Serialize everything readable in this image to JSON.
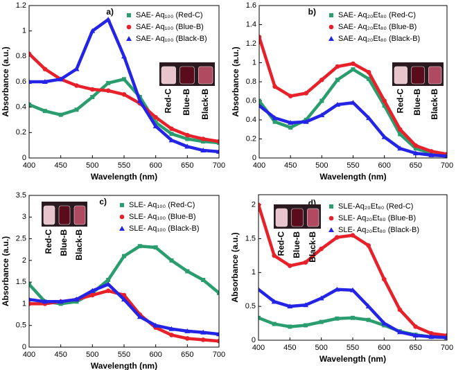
{
  "chart_data": [
    {
      "type": "line",
      "panel_label": "a)",
      "x_label": "Wavelength (nm)",
      "y_label": "Absorbance (a.u.)",
      "x": [
        400,
        425,
        450,
        475,
        500,
        525,
        550,
        575,
        600,
        625,
        650,
        675,
        700
      ],
      "xlim": [
        400,
        700
      ],
      "xticks": [
        400,
        450,
        500,
        550,
        600,
        650,
        700
      ],
      "ylim": [
        0,
        1.2
      ],
      "yticks": [
        0.0,
        0.2,
        0.4,
        0.6,
        0.8,
        1.0,
        1.2
      ],
      "inset_labels": [
        "Red-C",
        "Blue-B",
        "Black-B"
      ],
      "series": [
        {
          "name": "SAE- Aq₁₀₀ (Red-C)",
          "color": "#2a9d6f",
          "marker": "square",
          "values": [
            0.42,
            0.37,
            0.34,
            0.38,
            0.48,
            0.59,
            0.62,
            0.48,
            0.28,
            0.19,
            0.15,
            0.13,
            0.12
          ]
        },
        {
          "name": "SAE- Aq₁₀₀ (Blue-B)",
          "color": "#e8202a",
          "marker": "circle",
          "values": [
            0.82,
            0.7,
            0.62,
            0.57,
            0.54,
            0.53,
            0.5,
            0.43,
            0.32,
            0.23,
            0.18,
            0.15,
            0.13
          ]
        },
        {
          "name": "SAE- Aq₁₀₀ (Black-B)",
          "color": "#2424e6",
          "marker": "triangle",
          "values": [
            0.6,
            0.6,
            0.62,
            0.7,
            1.0,
            1.09,
            0.8,
            0.45,
            0.25,
            0.14,
            0.09,
            0.06,
            0.05
          ]
        }
      ]
    },
    {
      "type": "line",
      "panel_label": "b)",
      "x_label": "Wavelength (nm)",
      "y_label": "Absorbance (a.u.)",
      "x": [
        400,
        425,
        450,
        475,
        500,
        525,
        550,
        575,
        600,
        625,
        650,
        675,
        700
      ],
      "xlim": [
        400,
        700
      ],
      "xticks": [
        400,
        450,
        500,
        550,
        600,
        650,
        700
      ],
      "ylim": [
        0,
        1.6
      ],
      "yticks": [
        0.0,
        0.2,
        0.4,
        0.6,
        0.8,
        1.0,
        1.2,
        1.4,
        1.6
      ],
      "inset_labels": [
        "Red-C",
        "Blue-B",
        "Black-B"
      ],
      "series": [
        {
          "name": "SAE- Aq₂₀Et₈₀ (Red-C)",
          "color": "#2a9d6f",
          "marker": "square",
          "values": [
            0.6,
            0.38,
            0.32,
            0.4,
            0.6,
            0.82,
            0.93,
            0.83,
            0.55,
            0.25,
            0.1,
            0.05,
            0.03
          ]
        },
        {
          "name": "SAE- Aq₂₀Et₈₀ (Blue-B)",
          "color": "#e8202a",
          "marker": "circle",
          "values": [
            1.27,
            0.75,
            0.65,
            0.68,
            0.82,
            0.96,
            0.99,
            0.9,
            0.6,
            0.3,
            0.13,
            0.07,
            0.04
          ]
        },
        {
          "name": "SAE- Aq₂₀Et₈₀ (Black-B)",
          "color": "#2424e6",
          "marker": "triangle",
          "values": [
            0.55,
            0.42,
            0.37,
            0.38,
            0.45,
            0.56,
            0.58,
            0.42,
            0.22,
            0.1,
            0.05,
            0.03,
            0.02
          ]
        }
      ]
    },
    {
      "type": "line",
      "panel_label": "c)",
      "x_label": "Wavelength (nm)",
      "y_label": "Absorbance (a.u.)",
      "x": [
        400,
        425,
        450,
        475,
        500,
        525,
        550,
        575,
        600,
        625,
        650,
        675,
        700
      ],
      "xlim": [
        400,
        700
      ],
      "xticks": [
        400,
        450,
        500,
        550,
        600,
        650,
        700
      ],
      "ylim": [
        0,
        3.5
      ],
      "yticks": [
        0.0,
        0.5,
        1.0,
        1.5,
        2.0,
        2.5,
        3.0,
        3.5
      ],
      "inset_labels": [
        "Red-C",
        "Blue-B",
        "Black-B"
      ],
      "series": [
        {
          "name": "SLE- Aq₁₀₀ (Red-C)",
          "color": "#2a9d6f",
          "marker": "square",
          "values": [
            1.45,
            1.05,
            1.0,
            1.05,
            1.25,
            1.55,
            2.1,
            2.33,
            2.3,
            2.0,
            1.75,
            1.55,
            1.25
          ]
        },
        {
          "name": "SLE- Aq₁₀₀ (Blue-B)",
          "color": "#e8202a",
          "marker": "circle",
          "values": [
            1.0,
            1.0,
            1.05,
            1.1,
            1.2,
            1.3,
            1.2,
            0.75,
            0.45,
            0.28,
            0.2,
            0.17,
            0.14
          ]
        },
        {
          "name": "SLE- Aq₁₀₀ (Black-B)",
          "color": "#2424e6",
          "marker": "triangle",
          "values": [
            1.1,
            1.05,
            1.05,
            1.1,
            1.3,
            1.45,
            1.1,
            0.7,
            0.5,
            0.42,
            0.37,
            0.34,
            0.3
          ]
        }
      ]
    },
    {
      "type": "line",
      "panel_label": "d)",
      "x_label": "Wavelength (nm)",
      "y_label": "Absorbance (a.u.)",
      "x": [
        400,
        425,
        450,
        475,
        500,
        525,
        550,
        575,
        600,
        625,
        650,
        675,
        700
      ],
      "xlim": [
        400,
        700
      ],
      "xticks": [
        400,
        450,
        500,
        550,
        600,
        650,
        700
      ],
      "ylim": [
        0,
        2.15
      ],
      "yticks": [
        0.0,
        0.5,
        1.0,
        1.5,
        2.0
      ],
      "inset_labels": [
        "Red-C",
        "Blue-B",
        "Black-B"
      ],
      "series": [
        {
          "name": "SLE-Aq₂₀Et₈₀ (Red-C)",
          "color": "#2a9d6f",
          "marker": "square",
          "values": [
            0.33,
            0.24,
            0.2,
            0.22,
            0.27,
            0.32,
            0.33,
            0.3,
            0.22,
            0.13,
            0.08,
            0.05,
            0.04
          ]
        },
        {
          "name": "SLE- Aq₂₀Et₈₀ (Blue-B)",
          "color": "#e8202a",
          "marker": "circle",
          "values": [
            2.0,
            1.25,
            1.1,
            1.15,
            1.35,
            1.52,
            1.55,
            1.4,
            0.9,
            0.45,
            0.2,
            0.1,
            0.07
          ]
        },
        {
          "name": "SLE- Aq₂₀Et₈₀ (Black-B)",
          "color": "#2424e6",
          "marker": "triangle",
          "values": [
            0.75,
            0.57,
            0.5,
            0.52,
            0.62,
            0.75,
            0.74,
            0.5,
            0.25,
            0.12,
            0.07,
            0.05,
            0.04
          ]
        }
      ]
    }
  ]
}
